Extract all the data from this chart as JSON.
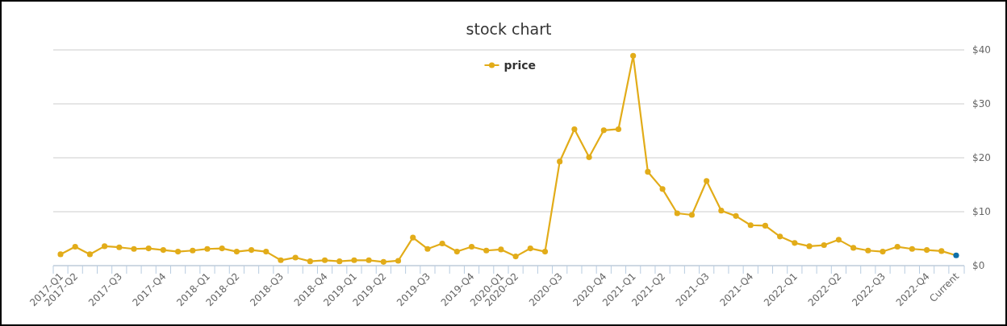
{
  "chart_data": {
    "type": "line",
    "title": "stock chart",
    "legend": "top",
    "grid": "y",
    "marker": "circle",
    "categories": [
      "2017-Q1",
      "2017-Q2",
      null,
      null,
      "2017-Q3",
      null,
      null,
      "2017-Q4",
      null,
      null,
      "2018-Q1",
      null,
      "2018-Q2",
      null,
      null,
      "2018-Q3",
      null,
      null,
      "2018-Q4",
      null,
      "2019-Q1",
      null,
      "2019-Q2",
      null,
      null,
      "2019-Q3",
      null,
      null,
      "2019-Q4",
      null,
      "2020-Q1",
      "2020-Q2",
      null,
      null,
      "2020-Q3",
      null,
      null,
      "2020-Q4",
      null,
      "2021-Q1",
      null,
      "2021-Q2",
      null,
      null,
      "2021-Q3",
      null,
      null,
      "2021-Q4",
      null,
      null,
      "2022-Q1",
      null,
      null,
      "2022-Q2",
      null,
      null,
      "2022-Q3",
      null,
      null,
      "2022-Q4",
      null,
      "Current"
    ],
    "series": [
      {
        "name": "price",
        "color": "#e2ac19",
        "colors": [
          "#e2ac19",
          "#e2ac19",
          "#e2ac19",
          "#e2ac19",
          "#e2ac19",
          "#e2ac19",
          "#e2ac19",
          "#e2ac19",
          "#e2ac19",
          "#e2ac19",
          "#e2ac19",
          "#e2ac19",
          "#e2ac19",
          "#e2ac19",
          "#e2ac19",
          "#e2ac19",
          "#e2ac19",
          "#e2ac19",
          "#e2ac19",
          "#e2ac19",
          "#e2ac19",
          "#e2ac19",
          "#e2ac19",
          "#e2ac19",
          "#e2ac19",
          "#e2ac19",
          "#e2ac19",
          "#e2ac19",
          "#e2ac19",
          "#e2ac19",
          "#e2ac19",
          "#e2ac19",
          "#e2ac19",
          "#e2ac19",
          "#e2ac19",
          "#e2ac19",
          "#e2ac19",
          "#e2ac19",
          "#e2ac19",
          "#e2ac19",
          "#e2ac19",
          "#e2ac19",
          "#e2ac19",
          "#e2ac19",
          "#e2ac19",
          "#e2ac19",
          "#e2ac19",
          "#e2ac19",
          "#e2ac19",
          "#e2ac19",
          "#e2ac19",
          "#e2ac19",
          "#e2ac19",
          "#e2ac19",
          "#e2ac19",
          "#e2ac19",
          "#e2ac19",
          "#e2ac19",
          "#e2ac19",
          "#e2ac19",
          "#e2ac19",
          "#0f6fa8"
        ],
        "values": [
          2.1,
          3.5,
          2.1,
          3.6,
          3.4,
          3.1,
          3.2,
          2.9,
          2.6,
          2.8,
          3.1,
          3.2,
          2.6,
          2.9,
          2.6,
          1.0,
          1.5,
          0.8,
          1.0,
          0.8,
          1.0,
          1.0,
          0.7,
          0.9,
          5.2,
          3.1,
          4.1,
          2.6,
          3.5,
          2.8,
          3.0,
          1.7,
          3.2,
          2.6,
          19.3,
          25.3,
          20.1,
          25.1,
          25.3,
          38.9,
          17.4,
          14.2,
          9.7,
          9.4,
          15.7,
          10.2,
          9.2,
          7.5,
          7.4,
          5.4,
          4.2,
          3.6,
          3.8,
          4.8,
          3.3,
          2.8,
          2.6,
          3.5,
          3.1,
          2.9,
          2.7,
          1.9
        ]
      }
    ],
    "ylim": [
      0,
      40
    ],
    "yticks": [
      {
        "value": 0,
        "label": "$0"
      },
      {
        "value": 10,
        "label": "$10"
      },
      {
        "value": 20,
        "label": "$20"
      },
      {
        "value": 30,
        "label": "$30"
      },
      {
        "value": 40,
        "label": "$40"
      }
    ]
  }
}
